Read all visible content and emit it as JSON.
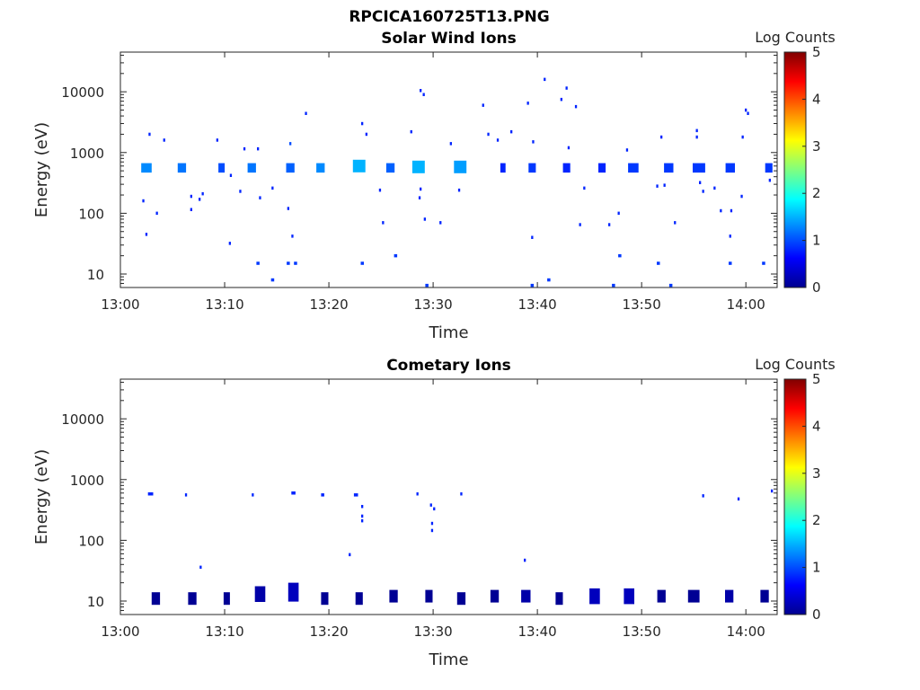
{
  "figure_title": "RPCICA160725T13.PNG",
  "chart_data": [
    {
      "type": "heatmap",
      "title": "Solar Wind Ions",
      "xlabel": "Time",
      "ylabel": "Energy (eV)",
      "x_ticks": [
        "13:00",
        "13:10",
        "13:20",
        "13:30",
        "13:40",
        "13:50",
        "14:00"
      ],
      "x_range": [
        "13:00",
        "14:03"
      ],
      "y_scale": "log",
      "y_ticks": [
        10,
        100,
        1000,
        10000
      ],
      "y_range": [
        6,
        45000
      ],
      "colorbar": {
        "label": "Log Counts",
        "min": 0,
        "max": 5,
        "ticks": [
          0,
          1,
          2,
          3,
          4,
          5
        ],
        "colormap": "jet"
      },
      "grid": false,
      "points": [
        {
          "t": 2.5,
          "e": 560,
          "v": 1.3,
          "w": 1.0,
          "n": 3
        },
        {
          "t": 5.9,
          "e": 560,
          "v": 1.2,
          "w": 0.8,
          "n": 3
        },
        {
          "t": 9.7,
          "e": 560,
          "v": 1.0,
          "w": 0.6,
          "n": 3
        },
        {
          "t": 12.6,
          "e": 560,
          "v": 1.2,
          "w": 0.8,
          "n": 3
        },
        {
          "t": 16.3,
          "e": 560,
          "v": 1.1,
          "w": 0.8,
          "n": 3
        },
        {
          "t": 19.2,
          "e": 560,
          "v": 1.3,
          "w": 0.8,
          "n": 3
        },
        {
          "t": 22.9,
          "e": 600,
          "v": 1.5,
          "w": 1.2,
          "n": 4
        },
        {
          "t": 25.9,
          "e": 560,
          "v": 1.1,
          "w": 0.8,
          "n": 3
        },
        {
          "t": 28.6,
          "e": 580,
          "v": 1.5,
          "w": 1.2,
          "n": 4
        },
        {
          "t": 32.6,
          "e": 580,
          "v": 1.4,
          "w": 1.2,
          "n": 4
        },
        {
          "t": 36.7,
          "e": 560,
          "v": 0.8,
          "w": 0.5,
          "n": 3
        },
        {
          "t": 39.5,
          "e": 560,
          "v": 0.9,
          "w": 0.7,
          "n": 3
        },
        {
          "t": 42.8,
          "e": 560,
          "v": 0.8,
          "w": 0.7,
          "n": 3
        },
        {
          "t": 46.2,
          "e": 560,
          "v": 0.8,
          "w": 0.7,
          "n": 3
        },
        {
          "t": 49.2,
          "e": 560,
          "v": 0.9,
          "w": 1.0,
          "n": 3
        },
        {
          "t": 52.6,
          "e": 560,
          "v": 0.9,
          "w": 0.9,
          "n": 3
        },
        {
          "t": 55.5,
          "e": 560,
          "v": 0.9,
          "w": 1.2,
          "n": 3
        },
        {
          "t": 58.5,
          "e": 560,
          "v": 0.9,
          "w": 0.9,
          "n": 3
        },
        {
          "t": 62.2,
          "e": 560,
          "v": 0.9,
          "w": 0.7,
          "n": 3
        },
        {
          "t": 2.8,
          "e": 2000,
          "v": 0.8,
          "w": 0.2,
          "n": 1
        },
        {
          "t": 4.2,
          "e": 1600,
          "v": 0.8,
          "w": 0.2,
          "n": 1
        },
        {
          "t": 9.3,
          "e": 1600,
          "v": 0.8,
          "w": 0.2,
          "n": 1
        },
        {
          "t": 11.9,
          "e": 1150,
          "v": 0.8,
          "w": 0.2,
          "n": 1
        },
        {
          "t": 13.2,
          "e": 1150,
          "v": 0.8,
          "w": 0.2,
          "n": 1
        },
        {
          "t": 17.8,
          "e": 4400,
          "v": 0.8,
          "w": 0.2,
          "n": 1
        },
        {
          "t": 16.3,
          "e": 1400,
          "v": 1.0,
          "w": 0.2,
          "n": 1
        },
        {
          "t": 23.2,
          "e": 3000,
          "v": 0.8,
          "w": 0.2,
          "n": 1
        },
        {
          "t": 23.6,
          "e": 2000,
          "v": 0.8,
          "w": 0.2,
          "n": 1
        },
        {
          "t": 27.9,
          "e": 2200,
          "v": 0.8,
          "w": 0.2,
          "n": 1
        },
        {
          "t": 28.8,
          "e": 10500,
          "v": 0.8,
          "w": 0.2,
          "n": 1
        },
        {
          "t": 29.1,
          "e": 9000,
          "v": 0.8,
          "w": 0.2,
          "n": 1
        },
        {
          "t": 31.7,
          "e": 1400,
          "v": 0.8,
          "w": 0.2,
          "n": 1
        },
        {
          "t": 34.8,
          "e": 6000,
          "v": 0.8,
          "w": 0.2,
          "n": 1
        },
        {
          "t": 35.3,
          "e": 2000,
          "v": 0.8,
          "w": 0.2,
          "n": 1
        },
        {
          "t": 36.2,
          "e": 1600,
          "v": 0.8,
          "w": 0.2,
          "n": 1
        },
        {
          "t": 37.5,
          "e": 2200,
          "v": 0.8,
          "w": 0.2,
          "n": 1
        },
        {
          "t": 39.1,
          "e": 6500,
          "v": 0.8,
          "w": 0.2,
          "n": 1
        },
        {
          "t": 39.6,
          "e": 1500,
          "v": 0.8,
          "w": 0.2,
          "n": 1
        },
        {
          "t": 40.7,
          "e": 16000,
          "v": 0.8,
          "w": 0.2,
          "n": 1
        },
        {
          "t": 42.3,
          "e": 7500,
          "v": 0.8,
          "w": 0.2,
          "n": 1
        },
        {
          "t": 42.8,
          "e": 11500,
          "v": 0.8,
          "w": 0.2,
          "n": 1
        },
        {
          "t": 43.7,
          "e": 5700,
          "v": 0.8,
          "w": 0.2,
          "n": 1
        },
        {
          "t": 43.0,
          "e": 1200,
          "v": 0.8,
          "w": 0.2,
          "n": 1
        },
        {
          "t": 48.6,
          "e": 1100,
          "v": 0.8,
          "w": 0.2,
          "n": 1
        },
        {
          "t": 51.9,
          "e": 1800,
          "v": 0.8,
          "w": 0.2,
          "n": 1
        },
        {
          "t": 55.3,
          "e": 2300,
          "v": 0.8,
          "w": 0.2,
          "n": 1
        },
        {
          "t": 55.3,
          "e": 1800,
          "v": 0.8,
          "w": 0.2,
          "n": 1
        },
        {
          "t": 59.7,
          "e": 1800,
          "v": 0.8,
          "w": 0.2,
          "n": 1
        },
        {
          "t": 60.0,
          "e": 5000,
          "v": 0.8,
          "w": 0.2,
          "n": 1
        },
        {
          "t": 60.2,
          "e": 4400,
          "v": 0.8,
          "w": 0.2,
          "n": 1
        },
        {
          "t": 2.2,
          "e": 160,
          "v": 0.8,
          "w": 0.2,
          "n": 1
        },
        {
          "t": 3.5,
          "e": 100,
          "v": 0.8,
          "w": 0.2,
          "n": 1
        },
        {
          "t": 6.8,
          "e": 190,
          "v": 0.8,
          "w": 0.2,
          "n": 1
        },
        {
          "t": 6.8,
          "e": 115,
          "v": 0.8,
          "w": 0.2,
          "n": 1
        },
        {
          "t": 7.6,
          "e": 170,
          "v": 0.8,
          "w": 0.2,
          "n": 1
        },
        {
          "t": 7.9,
          "e": 210,
          "v": 0.8,
          "w": 0.2,
          "n": 1
        },
        {
          "t": 10.6,
          "e": 420,
          "v": 0.8,
          "w": 0.2,
          "n": 1
        },
        {
          "t": 11.5,
          "e": 230,
          "v": 0.8,
          "w": 0.2,
          "n": 1
        },
        {
          "t": 13.4,
          "e": 180,
          "v": 0.8,
          "w": 0.2,
          "n": 1
        },
        {
          "t": 14.6,
          "e": 260,
          "v": 0.8,
          "w": 0.2,
          "n": 1
        },
        {
          "t": 16.1,
          "e": 120,
          "v": 0.8,
          "w": 0.2,
          "n": 1
        },
        {
          "t": 24.9,
          "e": 240,
          "v": 0.8,
          "w": 0.2,
          "n": 1
        },
        {
          "t": 25.2,
          "e": 70,
          "v": 0.8,
          "w": 0.2,
          "n": 1
        },
        {
          "t": 28.7,
          "e": 180,
          "v": 0.8,
          "w": 0.2,
          "n": 1
        },
        {
          "t": 28.8,
          "e": 250,
          "v": 0.8,
          "w": 0.2,
          "n": 1
        },
        {
          "t": 29.2,
          "e": 80,
          "v": 0.8,
          "w": 0.2,
          "n": 1
        },
        {
          "t": 30.7,
          "e": 70,
          "v": 0.8,
          "w": 0.2,
          "n": 1
        },
        {
          "t": 32.5,
          "e": 240,
          "v": 0.8,
          "w": 0.2,
          "n": 1
        },
        {
          "t": 44.5,
          "e": 260,
          "v": 0.8,
          "w": 0.2,
          "n": 1
        },
        {
          "t": 44.1,
          "e": 65,
          "v": 0.8,
          "w": 0.2,
          "n": 1
        },
        {
          "t": 46.9,
          "e": 65,
          "v": 0.8,
          "w": 0.2,
          "n": 1
        },
        {
          "t": 47.8,
          "e": 100,
          "v": 0.8,
          "w": 0.2,
          "n": 1
        },
        {
          "t": 51.5,
          "e": 280,
          "v": 0.8,
          "w": 0.2,
          "n": 1
        },
        {
          "t": 52.2,
          "e": 290,
          "v": 0.8,
          "w": 0.2,
          "n": 1
        },
        {
          "t": 53.2,
          "e": 70,
          "v": 0.8,
          "w": 0.2,
          "n": 1
        },
        {
          "t": 55.6,
          "e": 320,
          "v": 0.8,
          "w": 0.2,
          "n": 1
        },
        {
          "t": 55.9,
          "e": 230,
          "v": 0.8,
          "w": 0.2,
          "n": 1
        },
        {
          "t": 57.0,
          "e": 260,
          "v": 0.8,
          "w": 0.2,
          "n": 1
        },
        {
          "t": 57.6,
          "e": 110,
          "v": 0.8,
          "w": 0.2,
          "n": 1
        },
        {
          "t": 58.6,
          "e": 110,
          "v": 0.8,
          "w": 0.2,
          "n": 1
        },
        {
          "t": 59.6,
          "e": 190,
          "v": 0.8,
          "w": 0.2,
          "n": 1
        },
        {
          "t": 62.3,
          "e": 350,
          "v": 0.8,
          "w": 0.2,
          "n": 1
        },
        {
          "t": 2.5,
          "e": 45,
          "v": 0.8,
          "w": 0.2,
          "n": 1
        },
        {
          "t": 10.5,
          "e": 32,
          "v": 0.8,
          "w": 0.2,
          "n": 1
        },
        {
          "t": 16.5,
          "e": 42,
          "v": 0.8,
          "w": 0.2,
          "n": 1
        },
        {
          "t": 39.5,
          "e": 40,
          "v": 0.8,
          "w": 0.2,
          "n": 1
        },
        {
          "t": 58.5,
          "e": 42,
          "v": 0.8,
          "w": 0.2,
          "n": 1
        },
        {
          "t": 13.2,
          "e": 15,
          "v": 0.9,
          "w": 0.3,
          "n": 1
        },
        {
          "t": 14.6,
          "e": 8,
          "v": 0.9,
          "w": 0.3,
          "n": 1
        },
        {
          "t": 16.1,
          "e": 15,
          "v": 0.9,
          "w": 0.3,
          "n": 1
        },
        {
          "t": 16.8,
          "e": 15,
          "v": 0.9,
          "w": 0.3,
          "n": 1
        },
        {
          "t": 23.2,
          "e": 15,
          "v": 0.9,
          "w": 0.3,
          "n": 1
        },
        {
          "t": 26.4,
          "e": 20,
          "v": 0.9,
          "w": 0.3,
          "n": 1
        },
        {
          "t": 29.4,
          "e": 6.5,
          "v": 0.9,
          "w": 0.3,
          "n": 1
        },
        {
          "t": 39.5,
          "e": 6.5,
          "v": 0.9,
          "w": 0.3,
          "n": 1
        },
        {
          "t": 41.1,
          "e": 8,
          "v": 0.9,
          "w": 0.3,
          "n": 1
        },
        {
          "t": 47.3,
          "e": 6.5,
          "v": 0.9,
          "w": 0.3,
          "n": 1
        },
        {
          "t": 47.9,
          "e": 20,
          "v": 0.9,
          "w": 0.3,
          "n": 1
        },
        {
          "t": 51.6,
          "e": 15,
          "v": 0.9,
          "w": 0.3,
          "n": 1
        },
        {
          "t": 52.8,
          "e": 6.5,
          "v": 0.9,
          "w": 0.3,
          "n": 1
        },
        {
          "t": 58.5,
          "e": 15,
          "v": 0.9,
          "w": 0.3,
          "n": 1
        },
        {
          "t": 61.7,
          "e": 15,
          "v": 0.9,
          "w": 0.3,
          "n": 1
        }
      ]
    },
    {
      "type": "heatmap",
      "title": "Cometary Ions",
      "xlabel": "Time",
      "ylabel": "Energy (eV)",
      "x_ticks": [
        "13:00",
        "13:10",
        "13:20",
        "13:30",
        "13:40",
        "13:50",
        "14:00"
      ],
      "x_range": [
        "13:00",
        "14:03"
      ],
      "y_scale": "log",
      "y_ticks": [
        10,
        100,
        1000,
        10000
      ],
      "y_range": [
        6,
        45000
      ],
      "colorbar": {
        "label": "Log Counts",
        "min": 0,
        "max": 5,
        "ticks": [
          0,
          1,
          2,
          3,
          4,
          5
        ],
        "colormap": "jet"
      },
      "grid": false,
      "points": [
        {
          "t": 3.4,
          "e": 11,
          "v": 0.1,
          "w": 0.8,
          "n": 4
        },
        {
          "t": 6.9,
          "e": 11,
          "v": 0.1,
          "w": 0.8,
          "n": 4
        },
        {
          "t": 10.2,
          "e": 11,
          "v": 0.1,
          "w": 0.6,
          "n": 4
        },
        {
          "t": 13.4,
          "e": 13,
          "v": 0.2,
          "w": 1.0,
          "n": 5
        },
        {
          "t": 16.6,
          "e": 14,
          "v": 0.3,
          "w": 1.0,
          "n": 6
        },
        {
          "t": 19.6,
          "e": 11,
          "v": 0.1,
          "w": 0.7,
          "n": 4
        },
        {
          "t": 22.9,
          "e": 11,
          "v": 0.1,
          "w": 0.7,
          "n": 4
        },
        {
          "t": 26.2,
          "e": 12,
          "v": 0.1,
          "w": 0.8,
          "n": 4
        },
        {
          "t": 29.6,
          "e": 12,
          "v": 0.1,
          "w": 0.7,
          "n": 4
        },
        {
          "t": 32.7,
          "e": 11,
          "v": 0.1,
          "w": 0.8,
          "n": 4
        },
        {
          "t": 35.9,
          "e": 12,
          "v": 0.1,
          "w": 0.8,
          "n": 4
        },
        {
          "t": 38.9,
          "e": 12,
          "v": 0.2,
          "w": 0.9,
          "n": 4
        },
        {
          "t": 42.1,
          "e": 11,
          "v": 0.1,
          "w": 0.7,
          "n": 4
        },
        {
          "t": 45.5,
          "e": 12,
          "v": 0.3,
          "w": 1.0,
          "n": 5
        },
        {
          "t": 48.8,
          "e": 12,
          "v": 0.3,
          "w": 1.0,
          "n": 5
        },
        {
          "t": 51.9,
          "e": 12,
          "v": 0.1,
          "w": 0.8,
          "n": 4
        },
        {
          "t": 55.0,
          "e": 12,
          "v": 0.1,
          "w": 1.1,
          "n": 4
        },
        {
          "t": 58.4,
          "e": 12,
          "v": 0.2,
          "w": 0.8,
          "n": 4
        },
        {
          "t": 61.8,
          "e": 12,
          "v": 0.1,
          "w": 0.8,
          "n": 4
        },
        {
          "t": 2.9,
          "e": 580,
          "v": 0.8,
          "w": 0.5,
          "n": 1
        },
        {
          "t": 6.3,
          "e": 560,
          "v": 0.8,
          "w": 0.2,
          "n": 1
        },
        {
          "t": 12.7,
          "e": 560,
          "v": 0.8,
          "w": 0.2,
          "n": 1
        },
        {
          "t": 16.6,
          "e": 600,
          "v": 0.8,
          "w": 0.4,
          "n": 1
        },
        {
          "t": 19.4,
          "e": 560,
          "v": 0.8,
          "w": 0.3,
          "n": 1
        },
        {
          "t": 22.6,
          "e": 560,
          "v": 0.8,
          "w": 0.4,
          "n": 1
        },
        {
          "t": 23.2,
          "e": 360,
          "v": 0.8,
          "w": 0.2,
          "n": 1
        },
        {
          "t": 23.2,
          "e": 250,
          "v": 0.8,
          "w": 0.2,
          "n": 1
        },
        {
          "t": 23.2,
          "e": 210,
          "v": 0.8,
          "w": 0.2,
          "n": 1
        },
        {
          "t": 22.0,
          "e": 58,
          "v": 0.8,
          "w": 0.2,
          "n": 1
        },
        {
          "t": 28.5,
          "e": 580,
          "v": 0.8,
          "w": 0.2,
          "n": 1
        },
        {
          "t": 29.8,
          "e": 380,
          "v": 0.8,
          "w": 0.2,
          "n": 1
        },
        {
          "t": 30.1,
          "e": 330,
          "v": 0.8,
          "w": 0.2,
          "n": 1
        },
        {
          "t": 29.9,
          "e": 190,
          "v": 0.8,
          "w": 0.2,
          "n": 1
        },
        {
          "t": 29.9,
          "e": 145,
          "v": 0.8,
          "w": 0.2,
          "n": 1
        },
        {
          "t": 32.7,
          "e": 580,
          "v": 0.8,
          "w": 0.2,
          "n": 1
        },
        {
          "t": 38.8,
          "e": 47,
          "v": 0.8,
          "w": 0.2,
          "n": 1
        },
        {
          "t": 7.7,
          "e": 36,
          "v": 0.8,
          "w": 0.2,
          "n": 1
        },
        {
          "t": 55.9,
          "e": 540,
          "v": 0.8,
          "w": 0.2,
          "n": 1
        },
        {
          "t": 59.3,
          "e": 480,
          "v": 0.8,
          "w": 0.2,
          "n": 1
        },
        {
          "t": 62.5,
          "e": 650,
          "v": 0.8,
          "w": 0.2,
          "n": 1
        }
      ]
    }
  ]
}
